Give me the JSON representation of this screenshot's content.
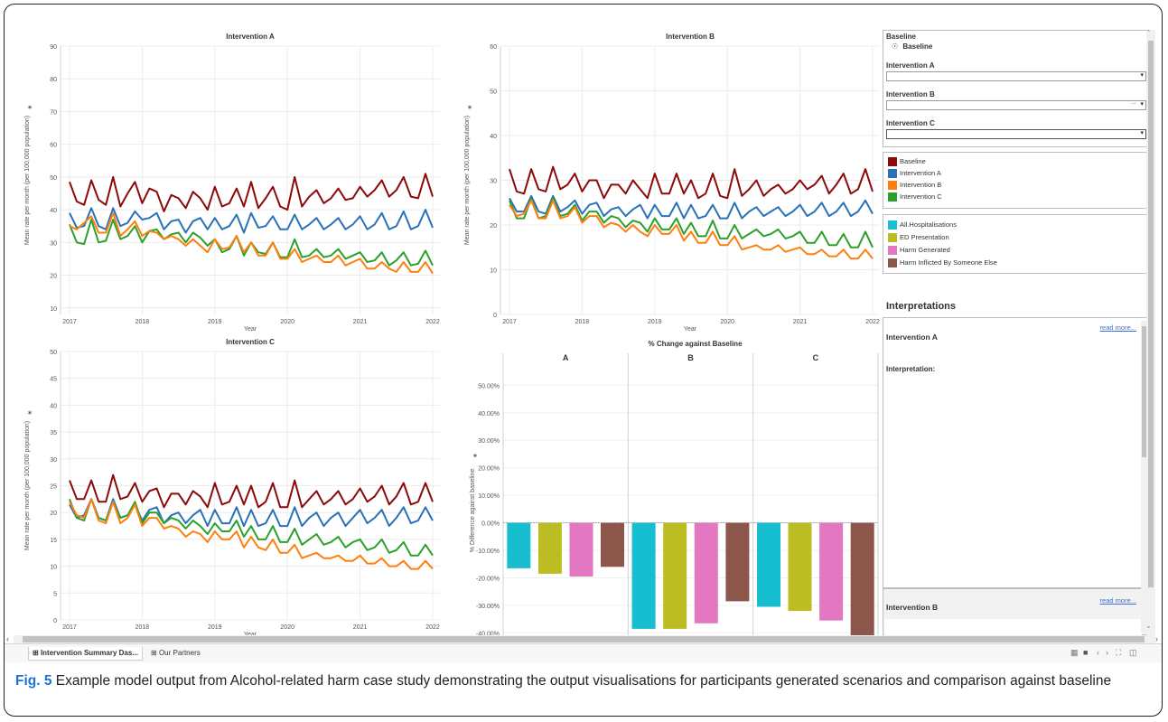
{
  "colors": {
    "baseline": "#8b0a0a",
    "intervention_a": "#2a72b8",
    "intervention_b": "#ff7f0e",
    "intervention_c": "#2ca02c",
    "all_hospitalisations": "#17becf",
    "ed_presentation": "#bcbd22",
    "harm_generated": "#e377c2",
    "harm_inflicted": "#8c564b",
    "link": "#3b6fd8",
    "caption_label": "#1a73d6"
  },
  "line_charts": [
    {
      "title": "Intervention A",
      "ylabel": "Mean rate per month (per 100,000 population)",
      "xlabel": "Year",
      "ylim": [
        8,
        90
      ],
      "yticks": [
        10,
        20,
        30,
        40,
        50,
        60,
        70,
        80,
        90
      ],
      "xticks": [
        "2017",
        "2018",
        "2019",
        "2020",
        "2021",
        "2022"
      ],
      "lines": {
        "baseline": [
          48.5,
          42.5,
          41.5,
          49,
          43,
          41.5,
          50,
          41,
          45,
          48.5,
          42,
          46.5,
          45.5,
          39.5,
          44.5,
          43.5,
          40.5,
          45.5,
          43.5,
          40,
          47,
          41,
          42,
          46.5,
          41,
          48.5,
          40.5,
          43.5,
          47,
          41,
          40,
          50,
          41,
          44,
          46,
          42,
          43.5,
          46.5,
          43,
          43.5,
          47,
          44,
          46,
          49,
          44,
          46,
          50,
          44,
          43.5,
          51,
          44
        ],
        "a": [
          39,
          34.5,
          35,
          40.5,
          35,
          34,
          40.5,
          35,
          36,
          39.5,
          37,
          37.5,
          39,
          34,
          36.5,
          37,
          33,
          36.5,
          37.5,
          34,
          37.5,
          34,
          35,
          38.5,
          33,
          39,
          34.5,
          35,
          38,
          34,
          34,
          38.5,
          34,
          35.5,
          37.5,
          34,
          35.5,
          37.5,
          34,
          35.5,
          38,
          34,
          35.5,
          39,
          34,
          35,
          39.5,
          34,
          35,
          40,
          34.5
        ],
        "b": [
          35,
          34,
          36,
          38,
          33,
          33,
          39,
          32,
          34,
          36.5,
          32,
          33.5,
          33,
          31,
          32,
          31,
          29,
          31,
          29,
          27,
          31,
          28,
          28.5,
          32,
          27,
          30,
          26,
          26,
          30,
          25,
          25,
          28,
          24,
          25,
          26,
          24,
          24,
          26,
          23,
          24,
          25,
          22,
          22,
          24,
          22,
          21,
          24,
          21,
          21,
          24,
          20.5
        ],
        "c": [
          35.5,
          30,
          29.5,
          37,
          30,
          30.5,
          37,
          31,
          32,
          35,
          30,
          33.5,
          34,
          31,
          32.5,
          33,
          30,
          33,
          31.5,
          29,
          31,
          27,
          28,
          32,
          26,
          30,
          27,
          26.5,
          30,
          25.5,
          25.5,
          31,
          25.5,
          26,
          28,
          25.5,
          26,
          28,
          25,
          26,
          27,
          24,
          24.5,
          27,
          23,
          24.5,
          27,
          23,
          23.5,
          27.5,
          23
        ]
      }
    },
    {
      "title": "Intervention B",
      "ylabel": "Mean rate per month (per 100,000 population)",
      "xlabel": "Year",
      "ylim": [
        0,
        60
      ],
      "yticks": [
        0,
        10,
        20,
        30,
        40,
        50,
        60
      ],
      "xticks": [
        "2017",
        "2018",
        "2019",
        "2020",
        "2021",
        "2022"
      ],
      "lines": {
        "baseline": [
          32.5,
          27.5,
          27,
          32.5,
          28,
          27.5,
          33,
          28,
          29,
          31.5,
          27.5,
          30,
          30,
          26,
          29,
          29,
          27,
          30,
          28,
          26,
          31.5,
          27,
          27,
          31.5,
          27,
          30,
          26,
          27,
          31.5,
          26.5,
          26,
          32.5,
          26.5,
          28,
          30,
          26.5,
          28,
          29,
          27,
          28,
          30,
          28,
          29,
          31,
          27,
          29,
          31.5,
          27,
          28,
          32.5,
          27.5
        ],
        "a": [
          26,
          23,
          23,
          26.5,
          23,
          22.5,
          26.5,
          23,
          24,
          25.5,
          22.5,
          24.5,
          25,
          22,
          23.5,
          24,
          22,
          23.5,
          24.5,
          21.5,
          24.5,
          22,
          22,
          25,
          21.5,
          24.5,
          21.5,
          22,
          24.5,
          21.5,
          21.5,
          25,
          21.5,
          23,
          24,
          22,
          23,
          24,
          22,
          23,
          24.5,
          22,
          23,
          25,
          22,
          23,
          25,
          22,
          23,
          25.5,
          22.5
        ],
        "b": [
          24.5,
          22,
          22.5,
          25.5,
          21.5,
          21.5,
          25.5,
          21.5,
          22,
          24,
          20.5,
          22,
          22,
          19.5,
          20.5,
          20,
          18.5,
          20,
          18.5,
          17.5,
          20,
          18,
          18,
          20,
          16.5,
          18.5,
          16,
          16,
          18.5,
          15.5,
          15.5,
          17.5,
          14.5,
          15,
          15.5,
          14.5,
          14.5,
          15.5,
          14,
          14.5,
          15,
          13.5,
          13.5,
          14.5,
          13,
          13,
          14.5,
          12.5,
          12.5,
          14.5,
          12.5
        ],
        "c": [
          25.5,
          21.5,
          21.5,
          26,
          21.5,
          22,
          26,
          22,
          22.5,
          24.5,
          21,
          23,
          23,
          20.5,
          22,
          21.5,
          19.5,
          21,
          20.5,
          18.5,
          21.5,
          19,
          19,
          21.5,
          18,
          20.5,
          17.5,
          17.5,
          21,
          17,
          17,
          20,
          17,
          18,
          19,
          17.5,
          18,
          19,
          17,
          17.5,
          18.5,
          16,
          16,
          18.5,
          15.5,
          15.5,
          18,
          15,
          15,
          18.5,
          15
        ]
      }
    },
    {
      "title": "Intervention C",
      "ylabel": "Mean rate per month (per 100,000 population)",
      "xlabel": "Year",
      "ylim": [
        0,
        50
      ],
      "yticks": [
        0,
        5,
        10,
        15,
        20,
        25,
        30,
        35,
        40,
        45,
        50
      ],
      "xticks": [
        "2017",
        "2018",
        "2019",
        "2020",
        "2021",
        "2022"
      ],
      "lines": {
        "baseline": [
          26,
          22.5,
          22.5,
          26,
          22,
          22,
          27,
          22.5,
          23,
          25.5,
          22,
          24,
          24.5,
          21,
          23.5,
          23.5,
          21.5,
          24,
          23,
          21,
          25.5,
          21.5,
          22,
          25,
          21.5,
          25,
          21,
          22,
          25.5,
          21,
          21,
          26,
          21,
          22.5,
          24,
          21.5,
          22.5,
          24,
          21.5,
          22.5,
          24.5,
          22,
          23,
          25,
          21.5,
          23,
          25.5,
          21.5,
          22,
          25.5,
          22
        ],
        "a": [
          21.5,
          19,
          19.5,
          22.5,
          19,
          18.5,
          22.5,
          19,
          19.5,
          21.5,
          18.5,
          20.5,
          21,
          18,
          19.5,
          20,
          18,
          19.5,
          20.5,
          17.5,
          20.5,
          18,
          18,
          21,
          17.5,
          20.5,
          17.5,
          18,
          20.5,
          17.5,
          17.5,
          21,
          17.5,
          19,
          20,
          17.5,
          19,
          20,
          17.5,
          19,
          20.5,
          18,
          19,
          20.5,
          17.5,
          19,
          21,
          18,
          18.5,
          21,
          18.5
        ],
        "b": [
          22,
          19.5,
          19,
          22.5,
          18.5,
          18,
          22,
          18,
          19,
          21.5,
          17.5,
          19,
          19,
          17,
          17.5,
          17,
          15.5,
          16.5,
          16,
          14.5,
          16.5,
          15,
          15,
          16.5,
          13.5,
          15.5,
          13.5,
          13,
          15,
          12.5,
          12.5,
          14,
          11.5,
          12,
          12.5,
          11.5,
          11.5,
          12,
          11,
          11,
          12,
          10.5,
          10.5,
          11.5,
          10,
          10,
          11,
          9.5,
          9.5,
          11,
          9.5
        ],
        "c": [
          22.5,
          19,
          18.5,
          22.5,
          19,
          18.5,
          22,
          19,
          19.5,
          22,
          18,
          20,
          20,
          18,
          19,
          18.5,
          17,
          18.5,
          17.5,
          16,
          18,
          16.5,
          16.5,
          18.5,
          15.5,
          17.5,
          15,
          15,
          17.5,
          14.5,
          14.5,
          17,
          14,
          15,
          16,
          14,
          14.5,
          15.5,
          13.5,
          14.5,
          15,
          13,
          13.5,
          15,
          12.5,
          13,
          14.5,
          12,
          12,
          14,
          12
        ]
      }
    }
  ],
  "chart_data": [
    {
      "type": "line",
      "title": "Intervention A",
      "xlabel": "Year",
      "ylabel": "Mean rate per month (per 100,000 population)",
      "ylim": [
        8,
        90
      ],
      "x_range": [
        "2017",
        "2022"
      ],
      "series": [
        {
          "name": "Baseline",
          "approx_mean": 45
        },
        {
          "name": "Intervention A",
          "approx_mean": 36
        },
        {
          "name": "Intervention B",
          "approx_mean": 28
        },
        {
          "name": "Intervention C",
          "approx_mean": 29
        }
      ]
    },
    {
      "type": "line",
      "title": "Intervention B",
      "xlabel": "Year",
      "ylabel": "Mean rate per month (per 100,000 population)",
      "ylim": [
        0,
        60
      ],
      "x_range": [
        "2017",
        "2022"
      ],
      "series": [
        {
          "name": "Baseline",
          "approx_mean": 29
        },
        {
          "name": "Intervention A",
          "approx_mean": 23.5
        },
        {
          "name": "Intervention B",
          "approx_mean": 17.5
        },
        {
          "name": "Intervention C",
          "approx_mean": 19.5
        }
      ]
    },
    {
      "type": "line",
      "title": "Intervention C",
      "xlabel": "Year",
      "ylabel": "Mean rate per month (per 100,000 population)",
      "ylim": [
        0,
        50
      ],
      "x_range": [
        "2017",
        "2022"
      ],
      "series": [
        {
          "name": "Baseline",
          "approx_mean": 23.5
        },
        {
          "name": "Intervention A",
          "approx_mean": 19.3
        },
        {
          "name": "Intervention B",
          "approx_mean": 15
        },
        {
          "name": "Intervention C",
          "approx_mean": 16.5
        }
      ]
    },
    {
      "type": "bar",
      "title": "% Change against Baseline",
      "ylabel": "% Difference against baseline",
      "panels": [
        "A",
        "B",
        "C"
      ],
      "categories": [
        "All.Hospitalisations",
        "ED Presentation",
        "Harm Generated",
        "Harm Inflicted By Someone Else"
      ],
      "ylim": [
        -41.5,
        57
      ],
      "yticks": [
        "50.00%",
        "40.00%",
        "30.00%",
        "20.00%",
        "10.00%",
        "0.00%",
        "-10.00%",
        "-20.00%",
        "-30.00%",
        "-40.00%"
      ],
      "series": [
        {
          "name": "A",
          "values": [
            -16.5,
            -18.5,
            -19.5,
            -16
          ]
        },
        {
          "name": "B",
          "values": [
            -38.5,
            -38.5,
            -36.5,
            -28.5
          ]
        },
        {
          "name": "C",
          "values": [
            -30.5,
            -32,
            -35.5,
            -43
          ]
        }
      ]
    }
  ],
  "panel": {
    "baseline_header": "Baseline",
    "baseline_option": "Baseline",
    "filters": [
      {
        "label": "Intervention A",
        "value": ""
      },
      {
        "label": "Intervention B",
        "value": ""
      },
      {
        "label": "Intervention C",
        "value": ""
      }
    ],
    "dd_dots": "...",
    "scenario_legend": [
      "Baseline",
      "Intervention A",
      "Intervention B",
      "Intervention C"
    ],
    "measure_legend": [
      "All.Hospitalisations",
      "ED Presentation",
      "Harm Generated",
      "Harm Inflicted By Someone Else"
    ],
    "interp_title": "Interpretations",
    "interp_a_title": "Intervention A",
    "interp_label": "Interpretation:",
    "interp_b_title": "Intervention B",
    "read_more": "read more..."
  },
  "tabs": [
    "Intervention Summary Das...",
    "Our Partners"
  ],
  "caption": {
    "label": "Fig. 5",
    "text": " Example model output from Alcohol-related harm case study demonstrating the output visualisations for participants generated scenarios and comparison against baseline"
  }
}
